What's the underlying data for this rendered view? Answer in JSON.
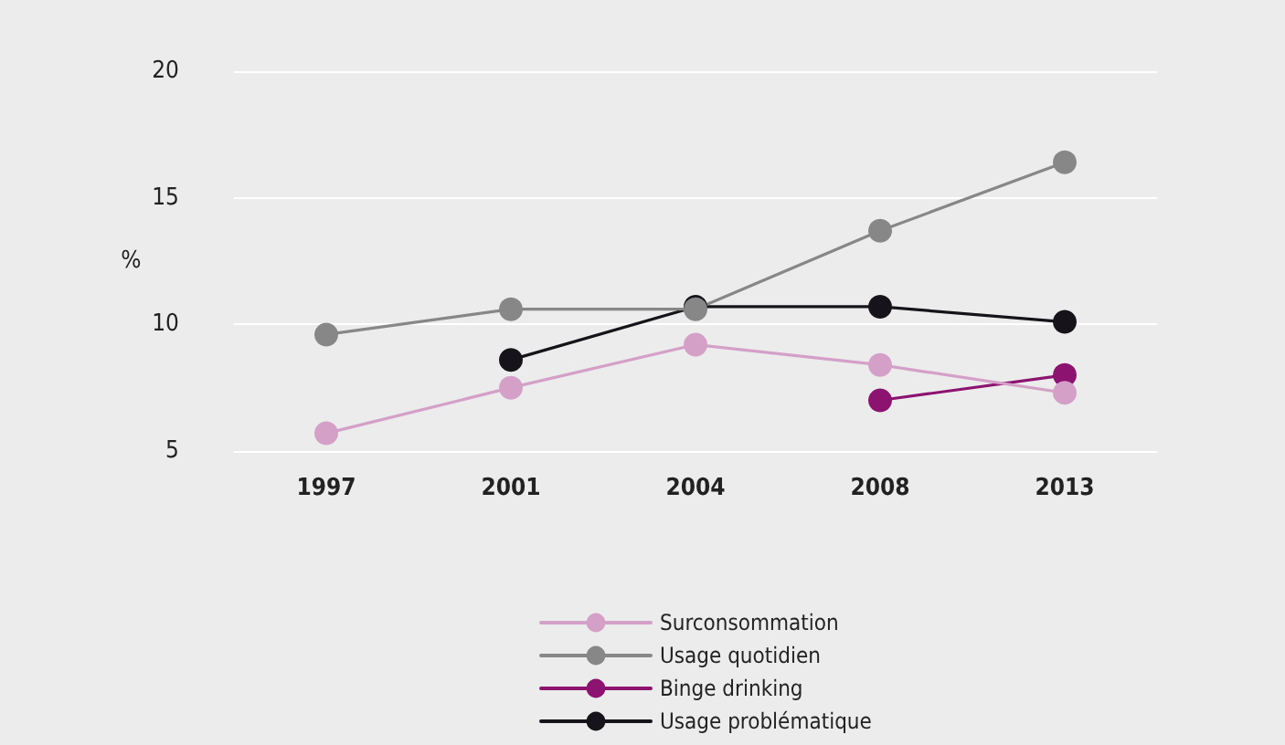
{
  "chart_data": {
    "type": "line",
    "ylabel": "%",
    "categories": [
      "1997",
      "2001",
      "2004",
      "2008",
      "2013"
    ],
    "series": [
      {
        "name": "Surconsommation",
        "color": "#d4a0c8",
        "values": [
          5.7,
          7.5,
          9.2,
          8.4,
          7.3
        ]
      },
      {
        "name": "Usage quotidien",
        "color": "#878787",
        "values": [
          9.6,
          10.6,
          10.6,
          13.7,
          16.4
        ]
      },
      {
        "name": "Binge drinking",
        "color": "#8c1470",
        "values": [
          null,
          null,
          null,
          7.0,
          8.0
        ]
      },
      {
        "name": "Usage problématique",
        "color": "#16141a",
        "values": [
          null,
          8.6,
          10.7,
          10.7,
          10.1
        ]
      }
    ],
    "ylim": [
      5,
      20
    ],
    "yticks": [
      5,
      10,
      15,
      20
    ],
    "grid": "y",
    "legend": "bottom",
    "marker": "circle",
    "line_style": "solid"
  }
}
